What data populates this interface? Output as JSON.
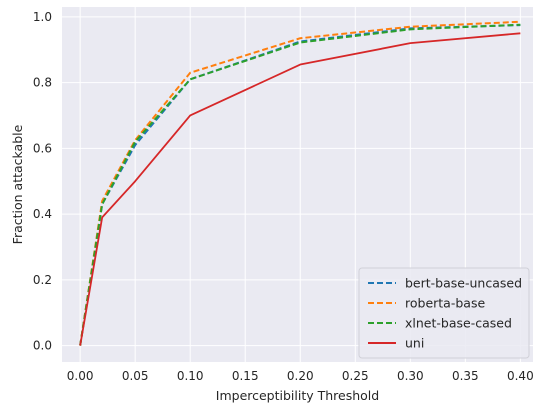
{
  "chart_data": {
    "type": "line",
    "title": "",
    "xlabel": "Imperceptibility Threshold",
    "ylabel": "Fraction attackable",
    "xlim": [
      -0.0165,
      0.4115
    ],
    "ylim": [
      -0.05,
      1.03
    ],
    "xticks": [
      0.0,
      0.05,
      0.1,
      0.15,
      0.2,
      0.25,
      0.3,
      0.35,
      0.4
    ],
    "xtick_labels": [
      "0.00",
      "0.05",
      "0.10",
      "0.15",
      "0.20",
      "0.25",
      "0.30",
      "0.35",
      "0.40"
    ],
    "yticks": [
      0.0,
      0.2,
      0.4,
      0.6,
      0.8,
      1.0
    ],
    "ytick_labels": [
      "0.0",
      "0.2",
      "0.4",
      "0.6",
      "0.8",
      "1.0"
    ],
    "x": [
      0.0,
      0.02,
      0.05,
      0.1,
      0.2,
      0.3,
      0.4
    ],
    "grid": true,
    "background": "#eaeaf2",
    "legend_position": "lower-right",
    "series": [
      {
        "name": "bert-base-uncased",
        "color": "#1f77b4",
        "dash": "dashed",
        "values": [
          0.0,
          0.43,
          0.61,
          0.81,
          0.925,
          0.965,
          0.975
        ]
      },
      {
        "name": "roberta-base",
        "color": "#ff7f0e",
        "dash": "dashed",
        "values": [
          0.0,
          0.44,
          0.625,
          0.83,
          0.935,
          0.97,
          0.985
        ]
      },
      {
        "name": "xlnet-base-cased",
        "color": "#2ca02c",
        "dash": "dashed",
        "values": [
          0.0,
          0.43,
          0.62,
          0.81,
          0.922,
          0.962,
          0.976
        ]
      },
      {
        "name": "uni",
        "color": "#d62728",
        "dash": "solid",
        "values": [
          0.0,
          0.39,
          0.5,
          0.7,
          0.855,
          0.92,
          0.95
        ]
      }
    ]
  }
}
